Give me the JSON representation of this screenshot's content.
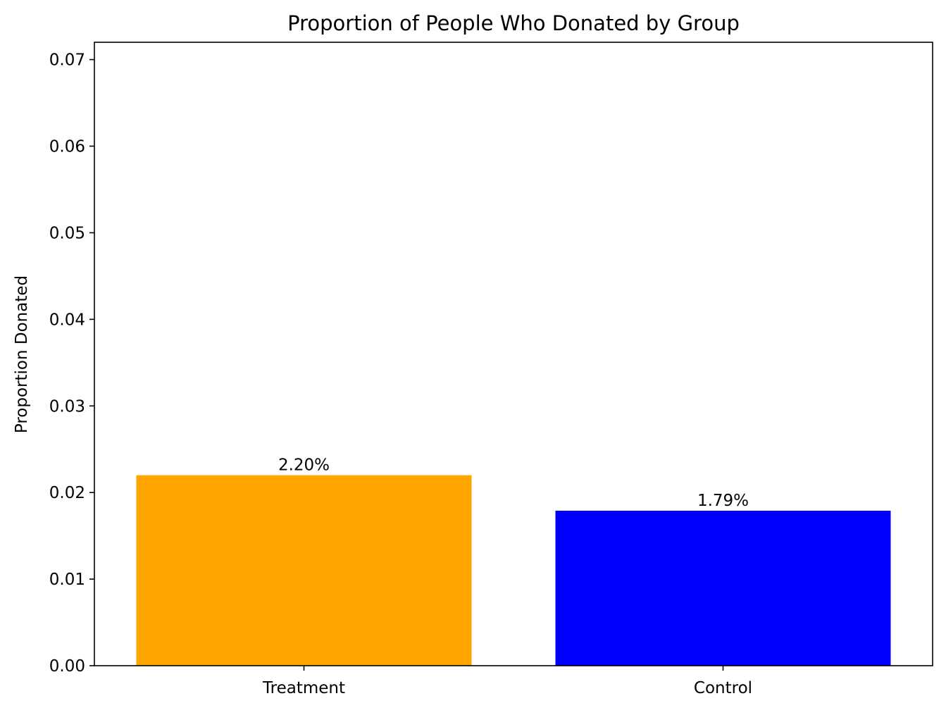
{
  "chart_data": {
    "type": "bar",
    "title": "Proportion of People Who Donated by Group",
    "xlabel": "",
    "ylabel": "Proportion Donated",
    "categories": [
      "Treatment",
      "Control"
    ],
    "values": [
      0.022,
      0.0179
    ],
    "data_labels": [
      "2.20%",
      "1.79%"
    ],
    "colors": [
      "#ffa500",
      "#0000ff"
    ],
    "ylim": [
      0,
      0.072
    ],
    "yticks": [
      0.0,
      0.01,
      0.02,
      0.03,
      0.04,
      0.05,
      0.06,
      0.07
    ],
    "ytick_labels": [
      "0.00",
      "0.01",
      "0.02",
      "0.03",
      "0.04",
      "0.05",
      "0.06",
      "0.07"
    ],
    "grid": false,
    "legend": "none"
  }
}
